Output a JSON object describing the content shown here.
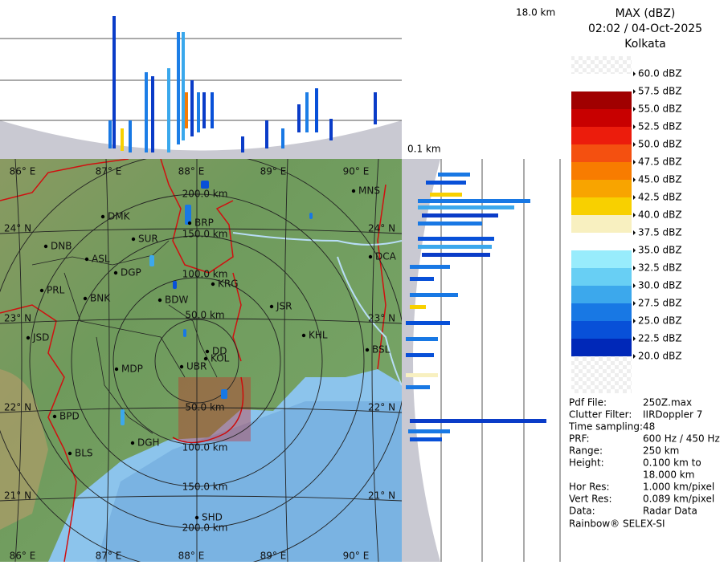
{
  "header": {
    "title": "MAX (dBZ)",
    "datetime": "02:02 / 04-Oct-2025",
    "station": "Kolkata"
  },
  "profile": {
    "top_height": "18.0 km",
    "bottom_height": "0.1 km"
  },
  "legend": {
    "labels": [
      "60.0 dBZ",
      "57.5 dBZ",
      "55.0 dBZ",
      "52.5 dBZ",
      "50.0 dBZ",
      "47.5 dBZ",
      "45.0 dBZ",
      "42.5 dBZ",
      "40.0 dBZ",
      "37.5 dBZ",
      "35.0 dBZ",
      "32.5 dBZ",
      "30.0 dBZ",
      "27.5 dBZ",
      "25.0 dBZ",
      "22.5 dBZ",
      "20.0 dBZ"
    ],
    "colors": [
      "#ffffff",
      "#a00000",
      "#c80000",
      "#ec1c0c",
      "#f45010",
      "#f87c00",
      "#f8a400",
      "#f8d000",
      "#f8f0c0",
      "#ffffff",
      "#98ecfc",
      "#68cff4",
      "#3ca8ec",
      "#1878e4",
      "#0850d8",
      "#0028b8"
    ]
  },
  "info": [
    {
      "label": "Pdf File:",
      "value": [
        "250Z.max"
      ]
    },
    {
      "label": "Clutter Filter:",
      "value": [
        "IIRDoppler 7"
      ]
    },
    {
      "label": "Time sampling:",
      "value": [
        "48"
      ]
    },
    {
      "label": "PRF:",
      "value": [
        "600 Hz / 450 Hz"
      ]
    },
    {
      "label": "Range:",
      "value": [
        "250 km"
      ]
    },
    {
      "label": "Height:",
      "value": [
        "0.100 km to",
        "18.000 km"
      ]
    },
    {
      "label": "Hor Res:",
      "value": [
        "1.000 km/pixel"
      ]
    },
    {
      "label": "Vert Res:",
      "value": [
        "0.089 km/pixel"
      ]
    },
    {
      "label": "Data:",
      "value": [
        "Radar Data"
      ]
    }
  ],
  "footer": "Rainbow® SELEX-SI",
  "map": {
    "lon_labels": [
      "86° E",
      "87° E",
      "88° E",
      "89° E",
      "90° E"
    ],
    "lat_labels": [
      "24° N",
      "23° N",
      "22° N",
      "21° N"
    ],
    "ring_labels": [
      "50.0 km",
      "100.0 km",
      "150.0 km",
      "200.0 km"
    ],
    "cities": [
      "MNS",
      "DMK",
      "BRP",
      "SUR",
      "DNB",
      "ASL",
      "DGP",
      "DCA",
      "KRG",
      "PRL",
      "BNK",
      "BDW",
      "JSR",
      "KHL",
      "JSD",
      "DD",
      "KOL",
      "MDP",
      "UBR",
      "BSL",
      "BPD",
      "DGH",
      "BLS",
      "SHD"
    ]
  }
}
